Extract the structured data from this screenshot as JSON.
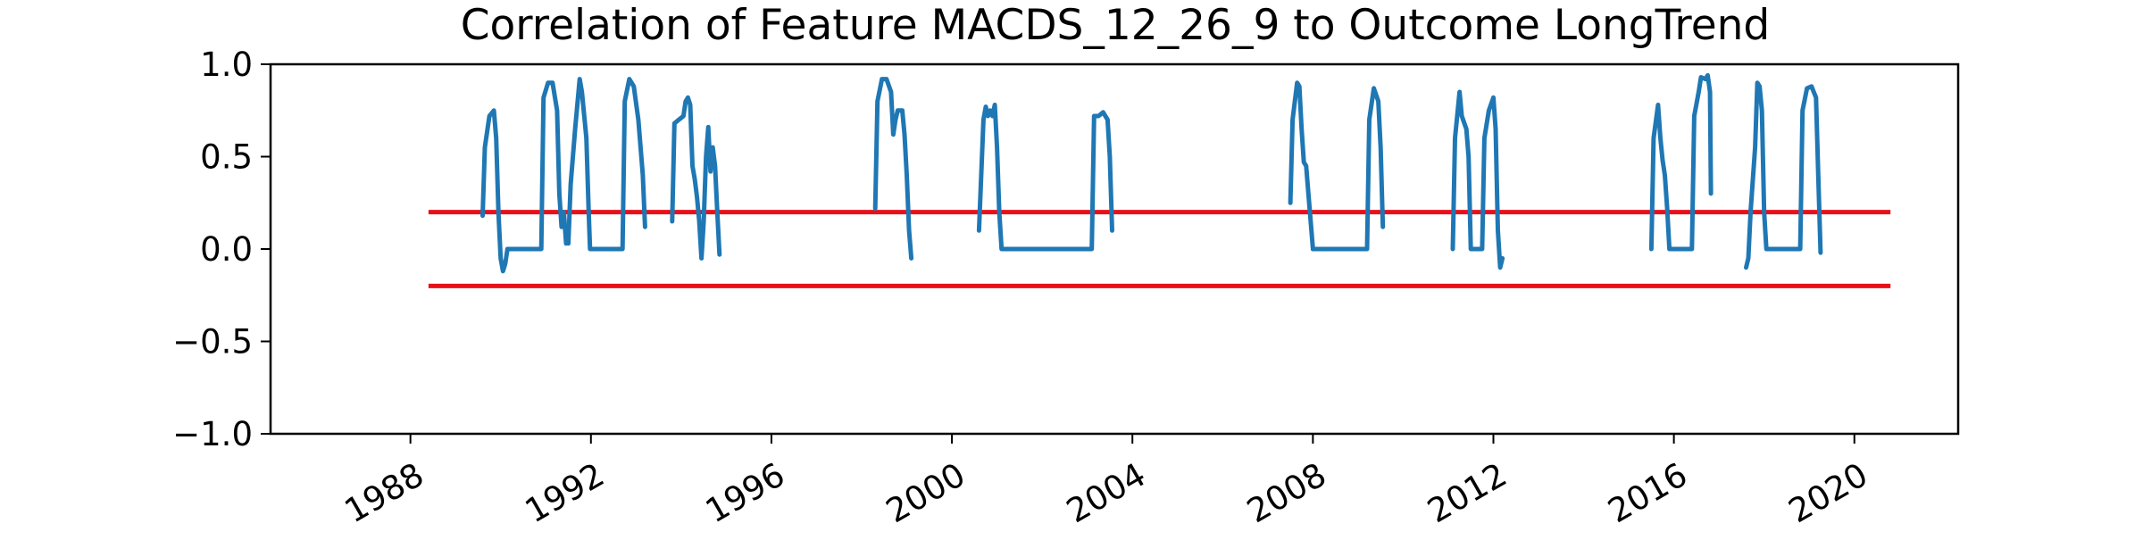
{
  "chart_data": {
    "type": "line",
    "title": "Correlation of Feature MACDS_12_26_9 to Outcome LongTrend",
    "xlabel": "",
    "ylabel": "",
    "xlim": [
      1984.9,
      2022.3
    ],
    "ylim": [
      -1.0,
      1.0
    ],
    "x_ticks": [
      1988,
      1992,
      1996,
      2000,
      2004,
      2008,
      2012,
      2016,
      2020
    ],
    "x_tick_labels": [
      "1988",
      "1992",
      "1996",
      "2000",
      "2004",
      "2008",
      "2012",
      "2016",
      "2020"
    ],
    "y_ticks": [
      1.0,
      0.5,
      0.0,
      -0.5,
      -1.0
    ],
    "y_tick_labels": [
      "1.0",
      "0.5",
      "0.0",
      "−0.5",
      "−1.0"
    ],
    "grid": false,
    "legend": "none",
    "colors": {
      "series": "#1f77b4",
      "threshold": "#e8101a",
      "axes": "#000000"
    },
    "thresholds": [
      {
        "y": 0.2,
        "x": [
          1988.4,
          2020.8
        ]
      },
      {
        "y": -0.2,
        "x": [
          1988.4,
          2020.8
        ]
      }
    ],
    "series": [
      {
        "segments": [
          [
            [
              1989.6,
              0.18
            ],
            [
              1989.65,
              0.55
            ],
            [
              1989.75,
              0.72
            ],
            [
              1989.85,
              0.75
            ],
            [
              1989.9,
              0.6
            ],
            [
              1989.95,
              0.2
            ],
            [
              1990.0,
              -0.05
            ],
            [
              1990.05,
              -0.12
            ],
            [
              1990.1,
              -0.08
            ],
            [
              1990.15,
              0.0
            ],
            [
              1990.3,
              0.0
            ],
            [
              1990.9,
              0.0
            ],
            [
              1990.95,
              0.82
            ],
            [
              1991.05,
              0.9
            ],
            [
              1991.15,
              0.9
            ],
            [
              1991.25,
              0.75
            ],
            [
              1991.3,
              0.3
            ],
            [
              1991.35,
              0.12
            ],
            [
              1991.4,
              0.2
            ],
            [
              1991.45,
              0.03
            ]
          ],
          [
            [
              1991.5,
              0.03
            ],
            [
              1991.55,
              0.35
            ],
            [
              1991.65,
              0.65
            ],
            [
              1991.75,
              0.92
            ],
            [
              1991.8,
              0.85
            ],
            [
              1991.9,
              0.6
            ],
            [
              1991.95,
              0.2
            ],
            [
              1991.98,
              0.0
            ],
            [
              1992.5,
              0.0
            ],
            [
              1992.7,
              0.0
            ],
            [
              1992.75,
              0.8
            ],
            [
              1992.85,
              0.92
            ],
            [
              1992.95,
              0.88
            ],
            [
              1993.05,
              0.7
            ],
            [
              1993.15,
              0.4
            ],
            [
              1993.2,
              0.12
            ]
          ],
          [
            [
              1993.8,
              0.15
            ],
            [
              1993.85,
              0.68
            ],
            [
              1993.95,
              0.7
            ],
            [
              1994.05,
              0.72
            ],
            [
              1994.1,
              0.8
            ],
            [
              1994.15,
              0.82
            ],
            [
              1994.2,
              0.78
            ],
            [
              1994.25,
              0.45
            ],
            [
              1994.3,
              0.38
            ],
            [
              1994.35,
              0.28
            ],
            [
              1994.4,
              0.15
            ],
            [
              1994.45,
              -0.05
            ],
            [
              1994.5,
              0.15
            ],
            [
              1994.55,
              0.5
            ],
            [
              1994.6,
              0.66
            ],
            [
              1994.65,
              0.42
            ],
            [
              1994.7,
              0.55
            ],
            [
              1994.75,
              0.45
            ],
            [
              1994.8,
              0.2
            ],
            [
              1994.85,
              -0.03
            ]
          ],
          [
            [
              1998.3,
              0.22
            ],
            [
              1998.35,
              0.8
            ],
            [
              1998.45,
              0.92
            ],
            [
              1998.55,
              0.92
            ],
            [
              1998.65,
              0.85
            ],
            [
              1998.7,
              0.62
            ],
            [
              1998.75,
              0.7
            ],
            [
              1998.8,
              0.75
            ],
            [
              1998.9,
              0.75
            ],
            [
              1998.95,
              0.62
            ],
            [
              1999.0,
              0.4
            ],
            [
              1999.05,
              0.1
            ],
            [
              1999.1,
              -0.05
            ]
          ],
          [
            [
              2000.6,
              0.1
            ],
            [
              2000.7,
              0.7
            ],
            [
              2000.75,
              0.77
            ],
            [
              2000.8,
              0.72
            ],
            [
              2000.85,
              0.75
            ],
            [
              2000.9,
              0.72
            ],
            [
              2000.95,
              0.78
            ],
            [
              2001.0,
              0.55
            ],
            [
              2001.05,
              0.2
            ],
            [
              2001.1,
              0.0
            ],
            [
              2003.1,
              0.0
            ],
            [
              2003.15,
              0.72
            ],
            [
              2003.25,
              0.72
            ],
            [
              2003.35,
              0.74
            ],
            [
              2003.45,
              0.7
            ],
            [
              2003.5,
              0.5
            ],
            [
              2003.55,
              0.1
            ]
          ],
          [
            [
              2007.5,
              0.25
            ],
            [
              2007.55,
              0.7
            ],
            [
              2007.65,
              0.9
            ],
            [
              2007.7,
              0.88
            ],
            [
              2007.75,
              0.65
            ],
            [
              2007.8,
              0.47
            ],
            [
              2007.85,
              0.45
            ],
            [
              2007.9,
              0.3
            ],
            [
              2008.0,
              0.0
            ],
            [
              2009.2,
              0.0
            ],
            [
              2009.25,
              0.7
            ],
            [
              2009.35,
              0.87
            ],
            [
              2009.45,
              0.8
            ],
            [
              2009.5,
              0.55
            ],
            [
              2009.55,
              0.12
            ]
          ],
          [
            [
              2011.1,
              0.0
            ],
            [
              2011.15,
              0.6
            ],
            [
              2011.25,
              0.85
            ],
            [
              2011.3,
              0.72
            ],
            [
              2011.4,
              0.65
            ],
            [
              2011.45,
              0.5
            ],
            [
              2011.5,
              0.0
            ],
            [
              2011.75,
              0.0
            ],
            [
              2011.8,
              0.6
            ],
            [
              2011.9,
              0.75
            ],
            [
              2012.0,
              0.82
            ],
            [
              2012.05,
              0.65
            ],
            [
              2012.1,
              0.1
            ],
            [
              2012.15,
              -0.1
            ],
            [
              2012.2,
              -0.05
            ]
          ],
          [
            [
              2015.5,
              0.0
            ],
            [
              2015.55,
              0.6
            ],
            [
              2015.65,
              0.78
            ],
            [
              2015.7,
              0.6
            ],
            [
              2015.75,
              0.48
            ],
            [
              2015.8,
              0.4
            ],
            [
              2015.85,
              0.22
            ],
            [
              2015.9,
              0.0
            ],
            [
              2016.4,
              0.0
            ],
            [
              2016.45,
              0.72
            ],
            [
              2016.55,
              0.85
            ],
            [
              2016.6,
              0.93
            ],
            [
              2016.7,
              0.92
            ],
            [
              2016.75,
              0.94
            ],
            [
              2016.8,
              0.85
            ],
            [
              2016.82,
              0.3
            ]
          ],
          [
            [
              2017.6,
              -0.1
            ],
            [
              2017.65,
              -0.05
            ],
            [
              2017.7,
              0.2
            ],
            [
              2017.8,
              0.55
            ],
            [
              2017.85,
              0.9
            ],
            [
              2017.9,
              0.88
            ],
            [
              2017.95,
              0.75
            ],
            [
              2018.0,
              0.2
            ],
            [
              2018.05,
              0.0
            ],
            [
              2018.8,
              0.0
            ],
            [
              2018.85,
              0.75
            ],
            [
              2018.95,
              0.87
            ],
            [
              2019.05,
              0.88
            ],
            [
              2019.15,
              0.82
            ],
            [
              2019.2,
              0.4
            ],
            [
              2019.25,
              -0.02
            ]
          ]
        ]
      }
    ]
  }
}
